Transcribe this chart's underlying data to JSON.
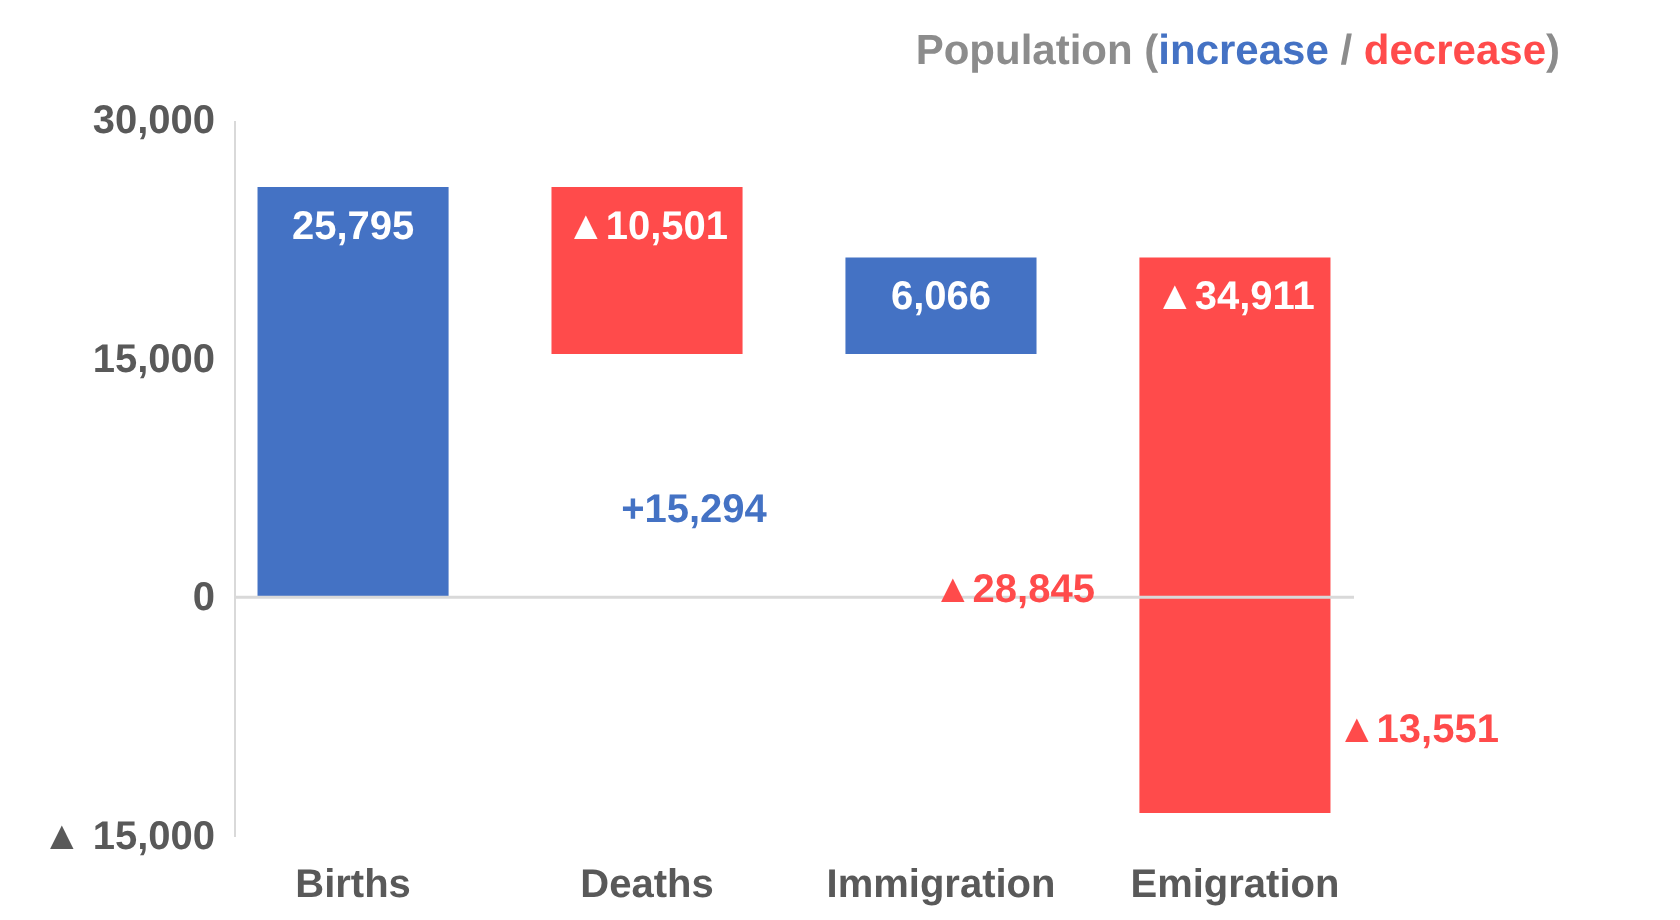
{
  "chart_data": {
    "type": "bar",
    "title": "Population (increase / decrease)",
    "categories": [
      "Births",
      "Deaths",
      "Immigration",
      "Emigration"
    ],
    "base": [
      0,
      25795,
      15294,
      21360
    ],
    "values": [
      25795,
      -10501,
      6066,
      -34911
    ],
    "value_labels": [
      "25,795",
      "▲10,501",
      "6,066",
      "▲34,911"
    ],
    "colors": [
      "#4472c4",
      "#ff4b4b",
      "#4472c4",
      "#ff4b4b"
    ],
    "ylim": [
      -15000,
      30000
    ],
    "yticks": [
      {
        "value": -15000,
        "label": "▲ 15,000"
      },
      {
        "value": 0,
        "label": "0"
      },
      {
        "value": 15000,
        "label": "15,000"
      },
      {
        "value": 30000,
        "label": "30,000"
      }
    ],
    "annotations": [
      "+15,294",
      "▲28,845",
      "▲13,551"
    ]
  }
}
